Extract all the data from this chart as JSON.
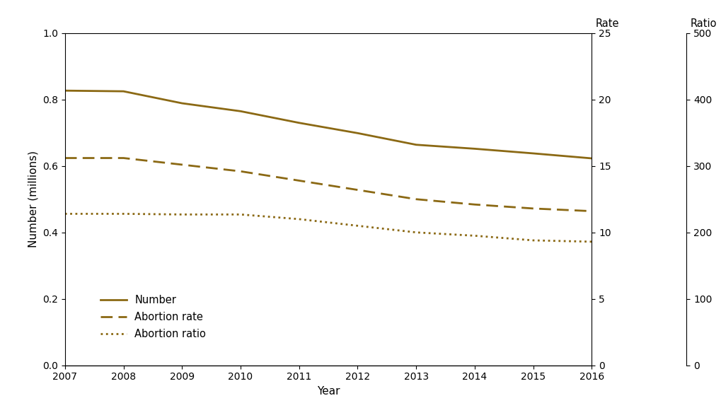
{
  "years": [
    2007,
    2008,
    2009,
    2010,
    2011,
    2012,
    2013,
    2014,
    2015,
    2016
  ],
  "number_millions": [
    0.827,
    0.825,
    0.789,
    0.765,
    0.73,
    0.699,
    0.664,
    0.652,
    0.638,
    0.623
  ],
  "abortion_rate": [
    15.6,
    15.6,
    15.1,
    14.6,
    13.9,
    13.2,
    12.5,
    12.1,
    11.8,
    11.6
  ],
  "abortion_ratio": [
    228,
    228,
    227,
    227,
    220,
    210,
    200,
    195,
    188,
    186
  ],
  "line_color": "#8B6914",
  "left_ylim": [
    0,
    1.0
  ],
  "left_yticks": [
    0.0,
    0.2,
    0.4,
    0.6,
    0.8,
    1.0
  ],
  "rate_ylim": [
    0,
    25
  ],
  "rate_yticks": [
    0,
    5,
    10,
    15,
    20,
    25
  ],
  "ratio_ylim": [
    0,
    500
  ],
  "ratio_yticks": [
    0,
    100,
    200,
    300,
    400,
    500
  ],
  "xlabel": "Year",
  "ylabel": "Number (millions)",
  "rate_label": "Rate",
  "ratio_label": "Ratio",
  "legend_number": "Number",
  "legend_rate": "Abortion rate",
  "legend_ratio": "Abortion ratio",
  "figsize": [
    10.2,
    5.87
  ],
  "dpi": 100,
  "background_color": "#ffffff"
}
